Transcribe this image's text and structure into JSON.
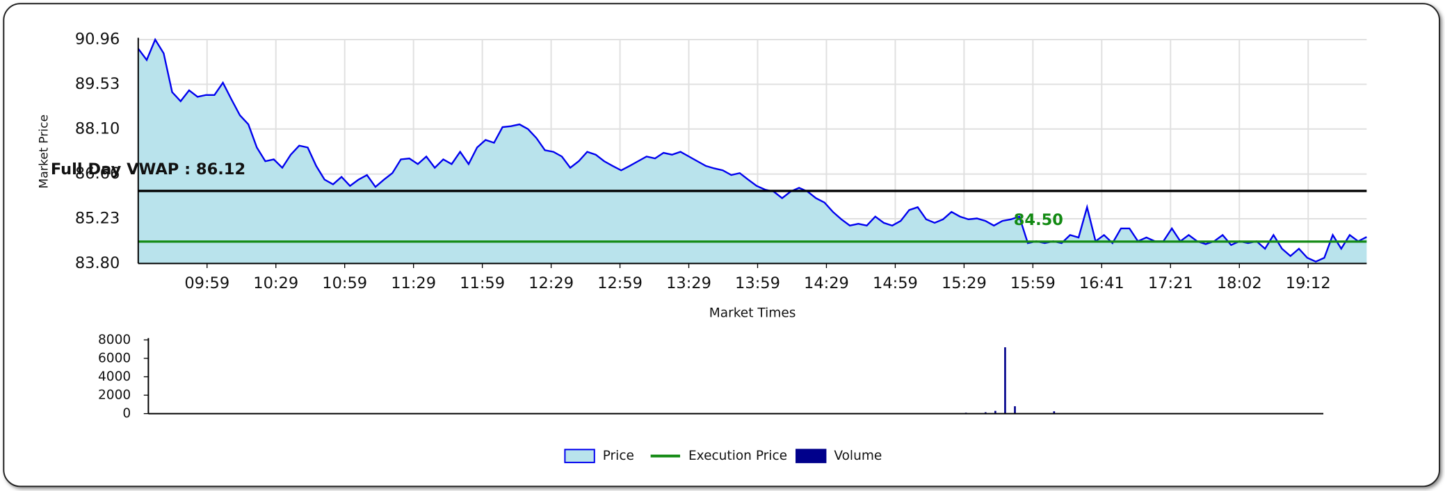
{
  "chart_data": [
    {
      "type": "area",
      "xlabel": "Market Times",
      "ylabel": "Market Price",
      "time_labels": [
        "09:59",
        "10:29",
        "10:59",
        "11:29",
        "11:59",
        "12:29",
        "12:59",
        "13:29",
        "13:59",
        "14:29",
        "14:59",
        "15:29",
        "15:59",
        "16:41",
        "17:21",
        "18:02",
        "19:12"
      ],
      "ylim": [
        83.8,
        90.96
      ],
      "yticks": [
        {
          "value": 83.8,
          "label": "83.80"
        },
        85.23,
        86.66,
        {
          "value": 88.1,
          "label": "88.10"
        },
        89.53,
        90.96
      ],
      "grid": true,
      "series": [
        {
          "name": "Price",
          "color": "#0000ee",
          "fill": "#b9e3ec",
          "values": [
            90.67,
            90.31,
            90.96,
            90.52,
            89.28,
            88.99,
            89.34,
            89.13,
            89.19,
            89.19,
            89.58,
            89.05,
            88.54,
            88.25,
            87.51,
            87.07,
            87.13,
            86.86,
            87.28,
            87.57,
            87.51,
            86.92,
            86.48,
            86.33,
            86.57,
            86.28,
            86.48,
            86.63,
            86.25,
            86.48,
            86.69,
            87.13,
            87.16,
            86.98,
            87.22,
            86.86,
            87.13,
            86.98,
            87.37,
            86.98,
            87.51,
            87.75,
            87.66,
            88.16,
            88.19,
            88.25,
            88.1,
            87.81,
            87.42,
            87.37,
            87.22,
            86.86,
            87.07,
            87.37,
            87.28,
            87.07,
            86.92,
            86.78,
            86.92,
            87.07,
            87.22,
            87.16,
            87.34,
            87.28,
            87.37,
            87.22,
            87.07,
            86.92,
            86.84,
            86.78,
            86.63,
            86.69,
            86.48,
            86.28,
            86.16,
            86.1,
            85.89,
            86.1,
            86.22,
            86.1,
            85.89,
            85.75,
            85.45,
            85.21,
            85.01,
            85.07,
            85.01,
            85.3,
            85.1,
            85.01,
            85.16,
            85.51,
            85.6,
            85.21,
            85.1,
            85.21,
            85.45,
            85.3,
            85.21,
            85.24,
            85.16,
            85.01,
            85.16,
            85.21,
            85.3,
            84.45,
            84.51,
            84.45,
            84.51,
            84.45,
            84.71,
            84.63,
            85.6,
            84.51,
            84.71,
            84.45,
            84.92,
            84.92,
            84.51,
            84.63,
            84.51,
            84.51,
            84.92,
            84.51,
            84.71,
            84.51,
            84.42,
            84.51,
            84.71,
            84.39,
            84.51,
            84.45,
            84.51,
            84.27,
            84.71,
            84.27,
            84.04,
            84.27,
            83.98,
            83.86,
            83.98,
            84.71,
            84.27,
            84.71,
            84.51,
            84.65
          ]
        }
      ],
      "execution": {
        "name": "Execution Price",
        "value": 84.5,
        "label": "84.50",
        "color": "#138a13"
      },
      "vwap": {
        "value": 86.12,
        "label": "Full Day VWAP : 86.12",
        "color": "#000000"
      }
    },
    {
      "type": "bar",
      "ylim": [
        0,
        8000
      ],
      "yticks": [
        0,
        2000,
        4000,
        6000,
        8000
      ],
      "series": [
        {
          "name": "Volume",
          "color": "#00008b",
          "values": [
            0,
            0,
            0,
            0,
            0,
            0,
            0,
            0,
            0,
            0,
            0,
            0,
            0,
            0,
            0,
            0,
            0,
            0,
            0,
            0,
            0,
            0,
            0,
            0,
            0,
            0,
            0,
            0,
            0,
            0,
            0,
            0,
            0,
            0,
            0,
            0,
            0,
            0,
            0,
            0,
            0,
            0,
            0,
            0,
            0,
            0,
            0,
            0,
            0,
            0,
            0,
            0,
            0,
            0,
            0,
            0,
            0,
            0,
            0,
            0,
            0,
            0,
            0,
            0,
            0,
            0,
            0,
            0,
            0,
            0,
            0,
            0,
            0,
            0,
            0,
            0,
            0,
            0,
            0,
            0,
            0,
            0,
            0,
            100,
            0,
            150,
            300,
            7200,
            800,
            0,
            0,
            0,
            250,
            0,
            0,
            0,
            0,
            0,
            0,
            0,
            0,
            0,
            0,
            0,
            0,
            0,
            0,
            0,
            0,
            0,
            0,
            0,
            0,
            0,
            0,
            0,
            0,
            0,
            0,
            0
          ]
        }
      ]
    }
  ]
}
